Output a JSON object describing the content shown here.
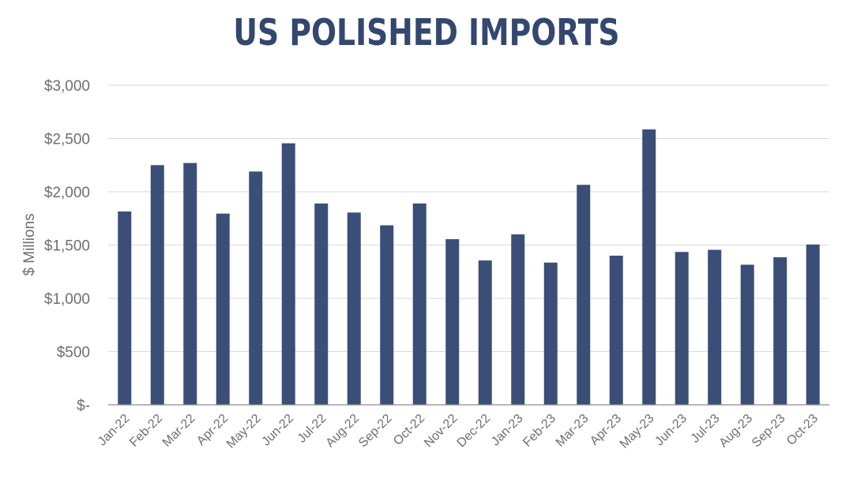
{
  "chart_data": {
    "type": "bar",
    "title": "US POLISHED IMPORTS",
    "ylabel": "$ Millions",
    "xlabel": "",
    "ylim": [
      0,
      3000
    ],
    "yticks": [
      {
        "value": 0,
        "label": "$-"
      },
      {
        "value": 500,
        "label": "$500"
      },
      {
        "value": 1000,
        "label": "$1,000"
      },
      {
        "value": 1500,
        "label": "$1,500"
      },
      {
        "value": 2000,
        "label": "$2,000"
      },
      {
        "value": 2500,
        "label": "$2,500"
      },
      {
        "value": 3000,
        "label": "$3,000"
      }
    ],
    "categories": [
      "Jan-22",
      "Feb-22",
      "Mar-22",
      "Apr-22",
      "May-22",
      "Jun-22",
      "Jul-22",
      "Aug-22",
      "Sep-22",
      "Oct-22",
      "Nov-22",
      "Dec-22",
      "Jan-23",
      "Feb-23",
      "Mar-23",
      "Apr-23",
      "May-23",
      "Jun-23",
      "Jul-23",
      "Aug-23",
      "Sep-23",
      "Oct-23"
    ],
    "values": [
      1815,
      2250,
      2270,
      1795,
      2190,
      2455,
      1890,
      1805,
      1685,
      1890,
      1555,
      1355,
      1600,
      1335,
      2065,
      1400,
      2585,
      1435,
      1455,
      1315,
      1385,
      1505
    ],
    "grid": true,
    "legend": "none",
    "bar_color": "#3a4e78",
    "grid_color": "#d9d9d9",
    "axis_color": "#8c8c8c"
  }
}
